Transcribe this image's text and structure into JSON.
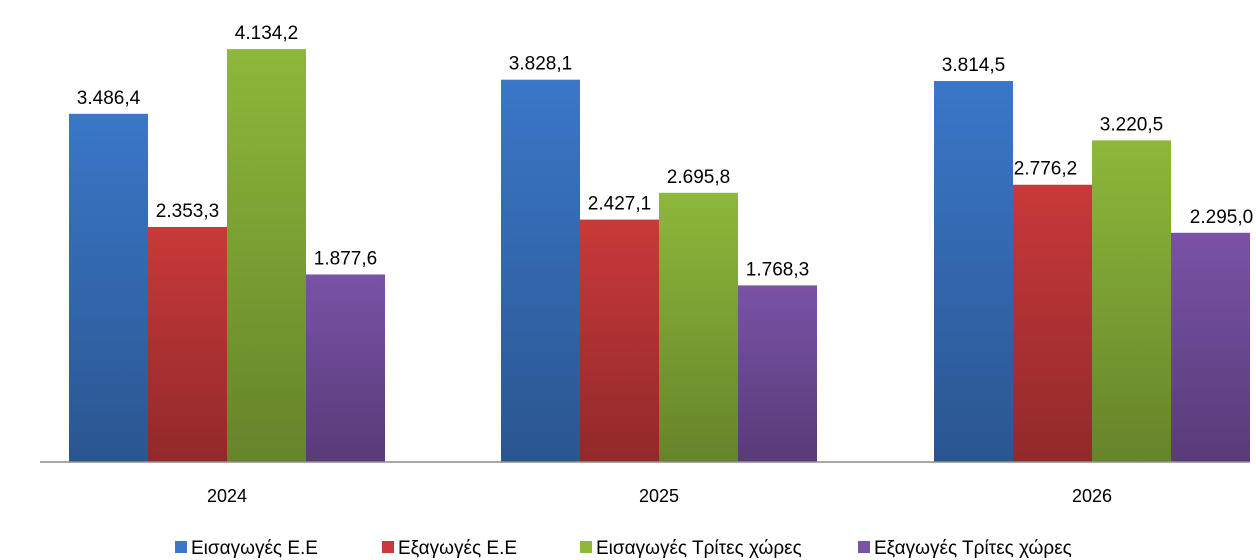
{
  "chart_data": {
    "type": "bar",
    "categories": [
      "2024",
      "2025",
      "2026"
    ],
    "series": [
      {
        "name": "Εισαγωγές Ε.Ε",
        "color": "#3A77C8",
        "values": [
          3486.4,
          3828.1,
          3814.5
        ],
        "labels": [
          "3.486,4",
          "3.828,1",
          "3.814,5"
        ]
      },
      {
        "name": "Εξαγωγές  Ε.Ε",
        "color": "#C9393A",
        "values": [
          2353.3,
          2427.1,
          2776.2
        ],
        "labels": [
          "2.353,3",
          "2.427,1",
          "2.776,2"
        ]
      },
      {
        "name": "Εισαγωγές Τρίτες χώρες",
        "color": "#8DB83A",
        "values": [
          4134.2,
          2695.8,
          3220.5
        ],
        "labels": [
          "4.134,2",
          "2.695,8",
          "3.220,5"
        ]
      },
      {
        "name": "Εξαγωγές Τρίτες χώρες",
        "color": "#7A52A6",
        "values": [
          1877.6,
          1768.3,
          2295.0
        ],
        "labels": [
          "1.877,6",
          "1.768,3",
          "2.295,0"
        ]
      }
    ],
    "ylim": [
      0,
      4500
    ],
    "grid": false,
    "legend_position": "bottom"
  }
}
